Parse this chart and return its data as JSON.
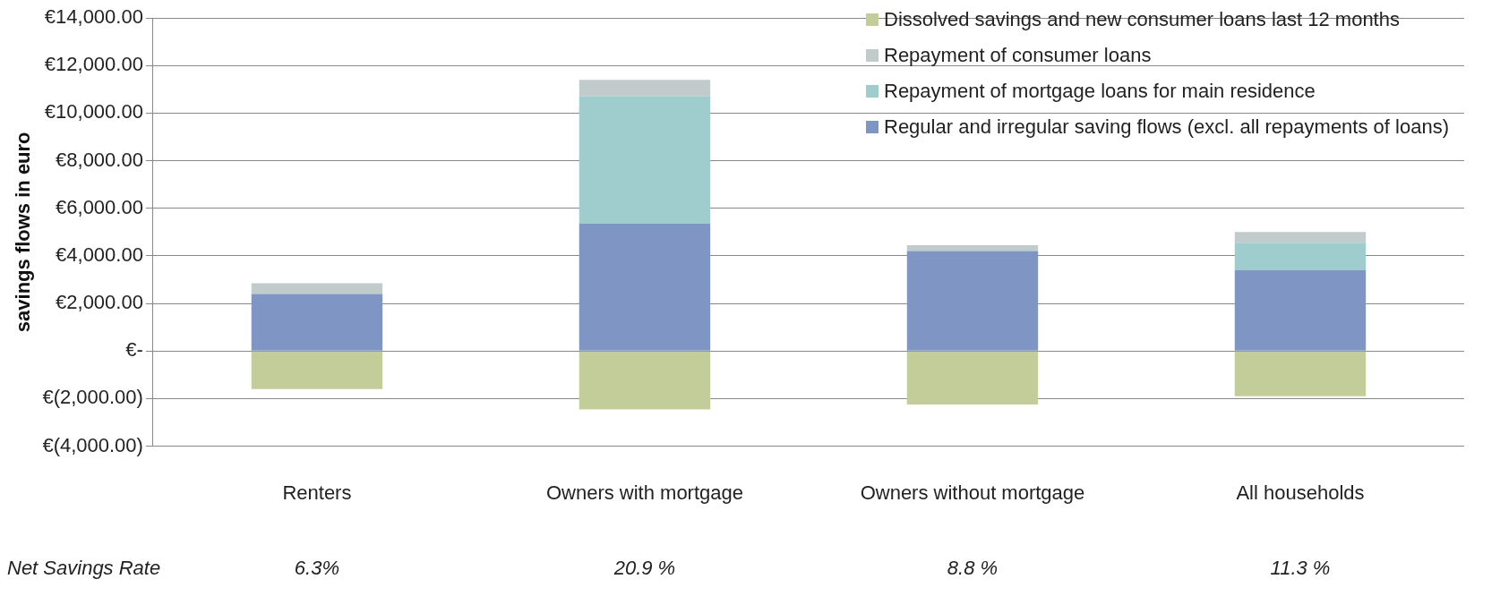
{
  "chart_data": {
    "type": "bar",
    "stacked": true,
    "ylabel": "savings flows in euro",
    "categories": [
      "Renters",
      "Owners with mortgage",
      "Owners without mortgage",
      "All households"
    ],
    "series": [
      {
        "name": "Regular and irregular saving flows (excl. all repayments of loans)",
        "color": "#7f96c5",
        "values": [
          2400,
          5350,
          4200,
          3400
        ]
      },
      {
        "name": "Repayment of mortgage loans for main residence",
        "color": "#9fcccc",
        "values": [
          0,
          5350,
          0,
          1150
        ]
      },
      {
        "name": "Repayment of consumer loans",
        "color": "#c2cbcb",
        "values": [
          450,
          700,
          250,
          450
        ]
      },
      {
        "name": "Dissolved savings and new consumer loans last 12 months",
        "color": "#c3cd9a",
        "values": [
          -1600,
          -2450,
          -2250,
          -1900
        ]
      }
    ],
    "ylim": [
      -4000,
      14000
    ],
    "yticks": [
      {
        "value": -4000,
        "label": "€(4,000.00)"
      },
      {
        "value": -2000,
        "label": "€(2,000.00)"
      },
      {
        "value": 0,
        "label": "€-"
      },
      {
        "value": 2000,
        "label": "€2,000.00"
      },
      {
        "value": 4000,
        "label": "€4,000.00"
      },
      {
        "value": 6000,
        "label": "€6,000.00"
      },
      {
        "value": 8000,
        "label": "€8,000.00"
      },
      {
        "value": 10000,
        "label": "€10,000.00"
      },
      {
        "value": 12000,
        "label": "€12,000.00"
      },
      {
        "value": 14000,
        "label": "€14,000.00"
      }
    ],
    "grid": "y",
    "legend": "top right",
    "annotations": [
      "Net Savings Rate",
      "6.3%",
      "20.9 %",
      "8.8 %",
      "11.3 %"
    ]
  }
}
